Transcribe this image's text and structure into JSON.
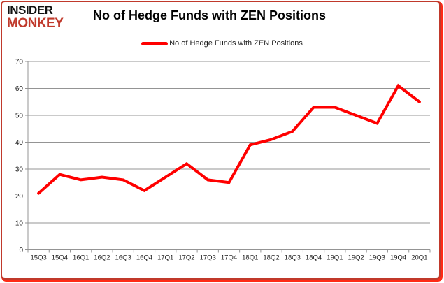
{
  "logo": {
    "line1": "INSIDER",
    "line2": "MONKEY"
  },
  "header": {
    "title": "No of Hedge Funds with ZEN Positions"
  },
  "legend": {
    "label": "No of Hedge Funds with ZEN Positions"
  },
  "chart_data": {
    "type": "line",
    "title": "No of Hedge Funds with ZEN Positions",
    "categories": [
      "15Q3",
      "15Q4",
      "16Q1",
      "16Q2",
      "16Q3",
      "16Q4",
      "17Q1",
      "17Q2",
      "17Q3",
      "17Q4",
      "18Q1",
      "18Q2",
      "18Q3",
      "18Q4",
      "19Q1",
      "19Q2",
      "19Q3",
      "19Q4",
      "20Q1"
    ],
    "series": [
      {
        "name": "No of Hedge Funds with ZEN Positions",
        "values": [
          21,
          28,
          26,
          27,
          26,
          22,
          27,
          32,
          26,
          25,
          39,
          41,
          44,
          53,
          53,
          50,
          47,
          61,
          55
        ]
      }
    ],
    "xlabel": "",
    "ylabel": "",
    "ylim": [
      0,
      70
    ],
    "yticks": [
      0,
      10,
      20,
      30,
      40,
      50,
      60,
      70
    ],
    "grid": "horizontal",
    "legend_position": "top",
    "line_color": "#ff0000",
    "grid_color": "#949494",
    "axis_text_color": "#1a1a1a"
  },
  "colors": {
    "brand_monkey": "#c0392b",
    "frame_red": "#fe2b16"
  }
}
